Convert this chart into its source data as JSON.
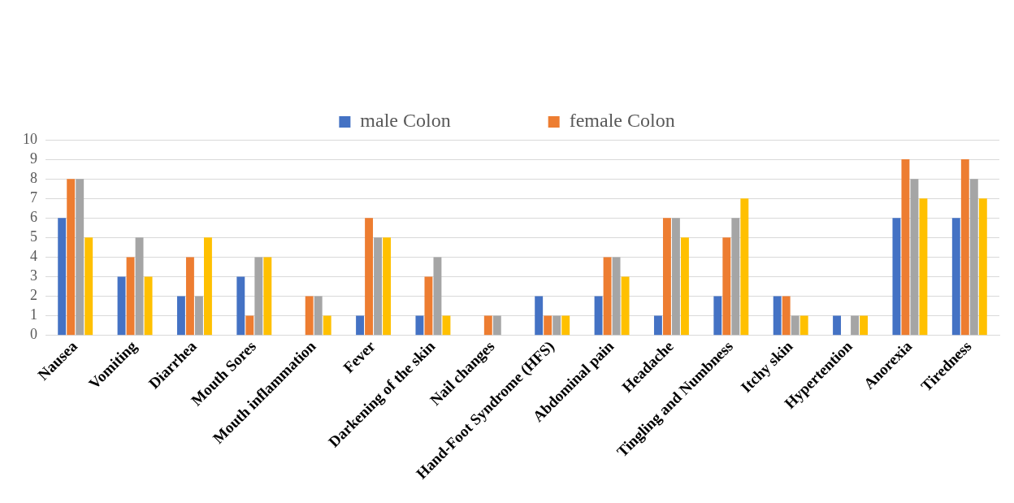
{
  "chart_data": {
    "type": "bar",
    "categories": [
      "Nausea",
      "Vomiting",
      "Diarrhea",
      "Mouth Sores",
      "Mouth inflammation",
      "Fever",
      "Darkening of the skin",
      "Nail changes",
      "Hand-Foot Syndrome (HFS)",
      "Abdominal pain",
      "Headache",
      "Tingling and Numbness",
      "Itchy skin",
      "Hypertention",
      "Anorexia",
      "Tiredness"
    ],
    "series": [
      {
        "name": "male Colon",
        "color": "#4472c4",
        "values": [
          6,
          3,
          2,
          3,
          0,
          1,
          1,
          0,
          2,
          2,
          1,
          2,
          2,
          1,
          6,
          6
        ]
      },
      {
        "name": "female Colon",
        "color": "#ed7d31",
        "values": [
          8,
          4,
          4,
          1,
          2,
          6,
          3,
          1,
          1,
          4,
          6,
          5,
          2,
          0,
          9,
          9
        ]
      },
      {
        "color": "#a5a5a5",
        "values": [
          8,
          5,
          2,
          4,
          2,
          5,
          4,
          1,
          1,
          4,
          6,
          6,
          1,
          1,
          8,
          8
        ]
      },
      {
        "color": "#ffc000",
        "values": [
          5,
          3,
          5,
          4,
          1,
          5,
          1,
          0,
          1,
          3,
          5,
          7,
          1,
          1,
          7,
          7
        ]
      }
    ],
    "ylim": [
      0,
      10
    ],
    "yticks": [
      0,
      1,
      2,
      3,
      4,
      5,
      6,
      7,
      8,
      9,
      10
    ],
    "grid": "y",
    "legend": "top"
  }
}
